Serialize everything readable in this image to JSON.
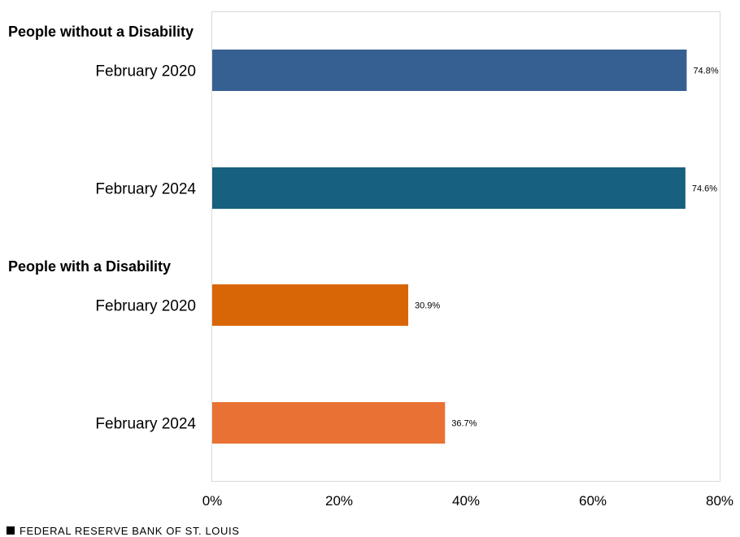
{
  "chart_data": {
    "type": "bar",
    "orientation": "horizontal",
    "title": "",
    "xlabel": "",
    "ylabel": "",
    "xlim": [
      0,
      80
    ],
    "ticks": [
      0,
      20,
      40,
      60,
      80
    ],
    "tick_labels": [
      "0%",
      "20%",
      "40%",
      "60%",
      "80%"
    ],
    "groups": [
      {
        "name": "People without a Disability",
        "bars": [
          {
            "category": "February 2020",
            "value": 74.8,
            "label": "74.8%",
            "color": "#376092"
          },
          {
            "category": "February 2024",
            "value": 74.6,
            "label": "74.6%",
            "color": "#17607f"
          }
        ]
      },
      {
        "name": "People with a Disability",
        "bars": [
          {
            "category": "February 2020",
            "value": 30.9,
            "label": "30.9%",
            "color": "#d86607"
          },
          {
            "category": "February 2024",
            "value": 36.7,
            "label": "36.7%",
            "color": "#e87133"
          }
        ]
      }
    ],
    "grid": false
  },
  "source": "FEDERAL RESERVE BANK OF ST. LOUIS",
  "colors": {
    "frame": "#d9d9d9",
    "text": "#000000"
  }
}
